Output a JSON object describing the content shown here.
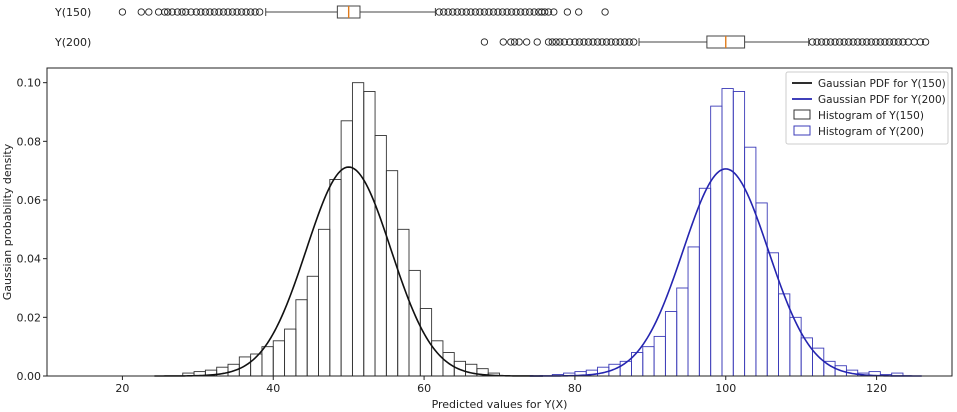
{
  "chart_data": [
    {
      "type": "boxplot",
      "label": "Y(150)",
      "box": {
        "q1": 48.5,
        "median": 50.0,
        "q3": 51.5,
        "whisker_low": 39.0,
        "whisker_high": 61.5
      },
      "outliers_low": [
        20.0,
        22.5,
        23.5,
        24.8,
        25.6,
        26.0,
        26.6,
        27.3,
        27.9,
        28.4,
        29.1,
        29.8,
        30.4,
        31.0,
        31.6,
        32.2,
        32.8,
        33.4,
        34.0,
        34.6,
        35.2,
        35.8,
        36.4,
        37.0,
        37.6,
        38.2
      ],
      "outliers_high": [
        62.0,
        62.6,
        63.2,
        63.8,
        64.4,
        65.0,
        65.6,
        66.2,
        66.8,
        67.4,
        68.0,
        68.6,
        69.2,
        69.8,
        70.4,
        71.0,
        71.6,
        72.2,
        72.8,
        73.4,
        74.0,
        74.6,
        75.2,
        75.6,
        76.0,
        76.5,
        77.2,
        79.0,
        80.5,
        84.0
      ]
    },
    {
      "type": "boxplot",
      "label": "Y(200)",
      "box": {
        "q1": 97.5,
        "median": 100.0,
        "q3": 102.5,
        "whisker_low": 88.5,
        "whisker_high": 111.0
      },
      "outliers_low": [
        68.0,
        70.5,
        71.5,
        72.0,
        72.6,
        73.6,
        75.0,
        76.5,
        77.0,
        77.5,
        78.0,
        78.6,
        79.3,
        80.0,
        80.6,
        81.2,
        81.8,
        82.4,
        83.0,
        83.6,
        84.2,
        84.8,
        85.4,
        86.0,
        86.6,
        87.2,
        87.8
      ],
      "outliers_high": [
        111.5,
        112.1,
        112.7,
        113.3,
        113.9,
        114.5,
        115.1,
        115.7,
        116.3,
        116.9,
        117.5,
        118.1,
        118.7,
        119.3,
        119.9,
        120.5,
        121.1,
        121.7,
        122.3,
        122.9,
        123.5,
        124.2,
        125.0,
        125.8,
        126.5
      ]
    },
    {
      "type": "histogram",
      "xlabel": "Predicted values for Y(X)",
      "ylabel": "Gaussian probability density",
      "xlim": [
        10,
        130
      ],
      "ylim": [
        0,
        0.105
      ],
      "xticks": [
        20,
        40,
        60,
        80,
        100,
        120
      ],
      "yticks": [
        0.0,
        0.02,
        0.04,
        0.06,
        0.08,
        0.1
      ],
      "ytick_labels": [
        "0.00",
        "0.02",
        "0.04",
        "0.06",
        "0.08",
        "0.10"
      ],
      "legend_position": "top-right",
      "series": [
        {
          "name": "Histogram of Y(150)",
          "kind": "histogram",
          "color": "#333333",
          "bin_edges": [
            28,
            29.5,
            31,
            32.5,
            34,
            35.5,
            37,
            38.5,
            40,
            41.5,
            43,
            44.5,
            46,
            47.5,
            49,
            50.5,
            52,
            53.5,
            55,
            56.5,
            58,
            59.5,
            61,
            62.5,
            64,
            65.5,
            67,
            68.5,
            70
          ],
          "values": [
            0.001,
            0.0015,
            0.002,
            0.003,
            0.004,
            0.0065,
            0.0075,
            0.01,
            0.012,
            0.016,
            0.026,
            0.034,
            0.05,
            0.067,
            0.087,
            0.1,
            0.097,
            0.082,
            0.07,
            0.05,
            0.036,
            0.023,
            0.012,
            0.008,
            0.005,
            0.004,
            0.0025,
            0.001
          ]
        },
        {
          "name": "Histogram of Y(200)",
          "kind": "histogram",
          "color": "#3b3bb8",
          "bin_edges": [
            77,
            78.5,
            80,
            81.5,
            83,
            84.5,
            86,
            87.5,
            89,
            90.5,
            92,
            93.5,
            95,
            96.5,
            98,
            99.5,
            101,
            102.5,
            104,
            105.5,
            107,
            108.5,
            110,
            111.5,
            113,
            114.5,
            116,
            117.5,
            119,
            120.5,
            122,
            123.5
          ],
          "values": [
            0.0005,
            0.001,
            0.0015,
            0.002,
            0.003,
            0.004,
            0.005,
            0.008,
            0.01,
            0.0135,
            0.022,
            0.03,
            0.044,
            0.064,
            0.092,
            0.098,
            0.097,
            0.078,
            0.059,
            0.042,
            0.028,
            0.02,
            0.013,
            0.0095,
            0.005,
            0.0035,
            0.002,
            0.001,
            0.0015,
            0.0005,
            0.001
          ]
        },
        {
          "name": "Gaussian PDF for Y(150)",
          "kind": "gaussian",
          "color": "#111111",
          "mean": 50,
          "std": 5.6
        },
        {
          "name": "Gaussian PDF for Y(200)",
          "kind": "gaussian",
          "color": "#2525b0",
          "mean": 100,
          "std": 5.65
        }
      ]
    }
  ],
  "legend": [
    {
      "label": "Gaussian PDF for Y(150)",
      "kind": "line",
      "color": "#111111"
    },
    {
      "label": "Gaussian PDF for Y(200)",
      "kind": "line",
      "color": "#2525b0"
    },
    {
      "label": "Histogram of Y(150)",
      "kind": "box",
      "color": "#333333"
    },
    {
      "label": "Histogram of Y(200)",
      "kind": "box",
      "color": "#3b3bb8"
    }
  ],
  "colors": {
    "median_line": "#e07b1a",
    "box_stroke": "#444444",
    "outlier_stroke": "#222222"
  }
}
